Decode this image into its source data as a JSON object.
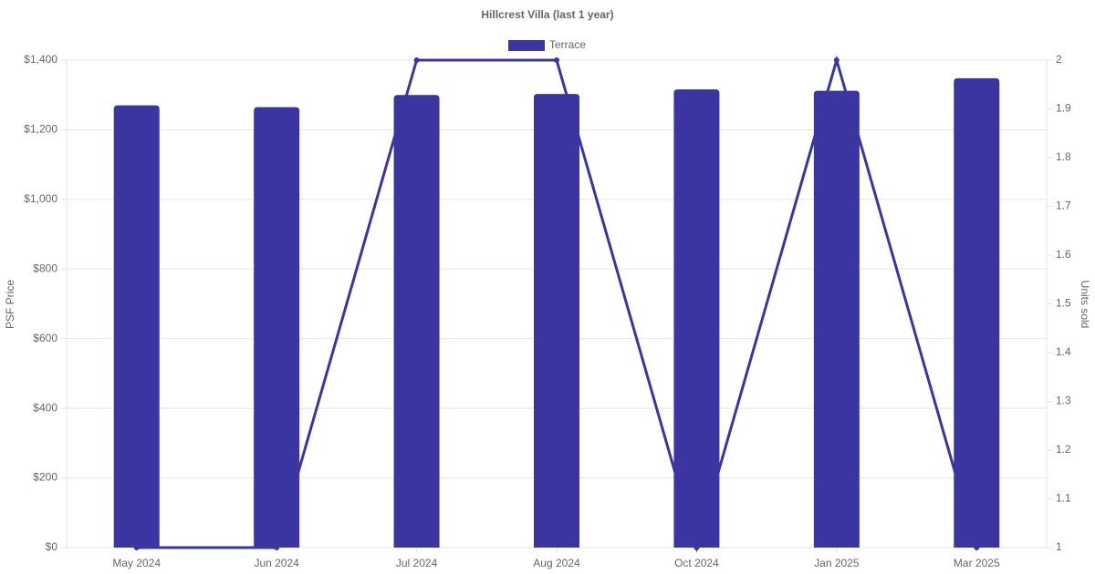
{
  "chart_data": {
    "type": "bar",
    "title": "Hillcrest Villa (last 1 year)",
    "categories": [
      "May 2024",
      "Jun 2024",
      "Jul 2024",
      "Aug 2024",
      "Oct 2024",
      "Jan 2025",
      "Mar 2025"
    ],
    "series": [
      {
        "name": "Terrace",
        "type": "bar",
        "color": "#3a35a0",
        "values": [
          1270,
          1265,
          1300,
          1303,
          1316,
          1312,
          1348
        ]
      },
      {
        "type": "line",
        "axis": "y2",
        "color": "#3a35a0",
        "values": [
          1,
          1,
          2,
          2,
          1,
          2,
          1
        ]
      }
    ],
    "ylabel": "PSF Price",
    "y2label": "Units sold",
    "ylim": [
      0,
      1400
    ],
    "yticks": [
      {
        "value": 0,
        "label": "$0"
      },
      {
        "value": 200,
        "label": "$200"
      },
      {
        "value": 400,
        "label": "$400"
      },
      {
        "value": 600,
        "label": "$600"
      },
      {
        "value": 800,
        "label": "$800"
      },
      {
        "value": 1000,
        "label": "$1,000"
      },
      {
        "value": 1200,
        "label": "$1,200"
      },
      {
        "value": 1400,
        "label": "$1,400"
      }
    ],
    "y2lim": [
      1,
      2
    ],
    "y2ticks": [
      1,
      1.1,
      1.2,
      1.3,
      1.4,
      1.5,
      1.6,
      1.7,
      1.8,
      1.9,
      2
    ],
    "grid": true,
    "legend": "top"
  }
}
